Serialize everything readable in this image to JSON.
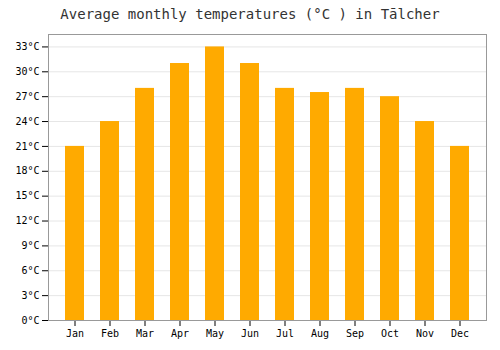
{
  "chart_data": {
    "type": "bar",
    "title": "Average monthly temperatures (°C ) in Tālcher",
    "categories": [
      "Jan",
      "Feb",
      "Mar",
      "Apr",
      "May",
      "Jun",
      "Jul",
      "Aug",
      "Sep",
      "Oct",
      "Nov",
      "Dec"
    ],
    "values": [
      21,
      24,
      28,
      31,
      33,
      31,
      28,
      27.5,
      28,
      27,
      24,
      21
    ],
    "color": "#FFAA00",
    "ylim": [
      0,
      34.5
    ],
    "yticks": [
      {
        "value": 0,
        "label": "0°C"
      },
      {
        "value": 3,
        "label": "3°C"
      },
      {
        "value": 6,
        "label": "6°C"
      },
      {
        "value": 9,
        "label": "9°C"
      },
      {
        "value": 12,
        "label": "12°C"
      },
      {
        "value": 15,
        "label": "15°C"
      },
      {
        "value": 18,
        "label": "18°C"
      },
      {
        "value": 21,
        "label": "21°C"
      },
      {
        "value": 24,
        "label": "24°C"
      },
      {
        "value": 27,
        "label": "27°C"
      },
      {
        "value": 30,
        "label": "30°C"
      },
      {
        "value": 33,
        "label": "33°C"
      }
    ],
    "grid": true
  }
}
